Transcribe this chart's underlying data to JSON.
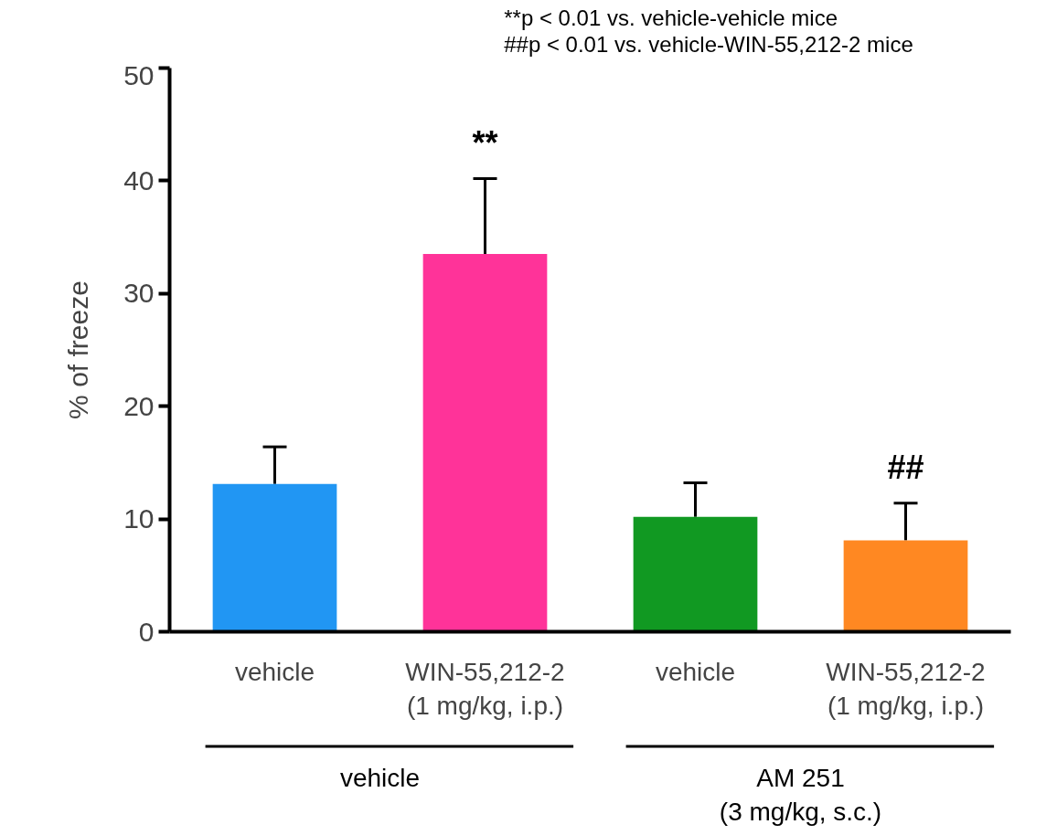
{
  "chart_data": {
    "type": "bar",
    "ylabel": "% of freeze",
    "categories": [
      "vehicle",
      "WIN-55,212-2\n(1 mg/kg, i.p.)",
      "vehicle",
      "WIN-55,212-2\n(1 mg/kg, i.p.)"
    ],
    "values": [
      13.1,
      33.5,
      10.2,
      8.1
    ],
    "colors": [
      "#2196f3",
      "#ff3399",
      "#119922",
      "#ff8822"
    ],
    "errors": [
      [
        13.1,
        16.4
      ],
      [
        33.5,
        40.2
      ],
      [
        10.2,
        13.2
      ],
      [
        8.1,
        11.4
      ]
    ],
    "value_labels": [
      null,
      "**",
      null,
      "##"
    ],
    "ylim": [
      0,
      50
    ],
    "yticks": [
      0,
      10,
      20,
      30,
      40,
      50
    ],
    "grid": false,
    "annotations": [
      "**p < 0.01 vs. vehicle-vehicle mice",
      "##p < 0.01 vs. vehicle-WIN-55,212-2 mice",
      "vehicle",
      "AM 251\n(3 mg/kg, s.c.)"
    ]
  }
}
